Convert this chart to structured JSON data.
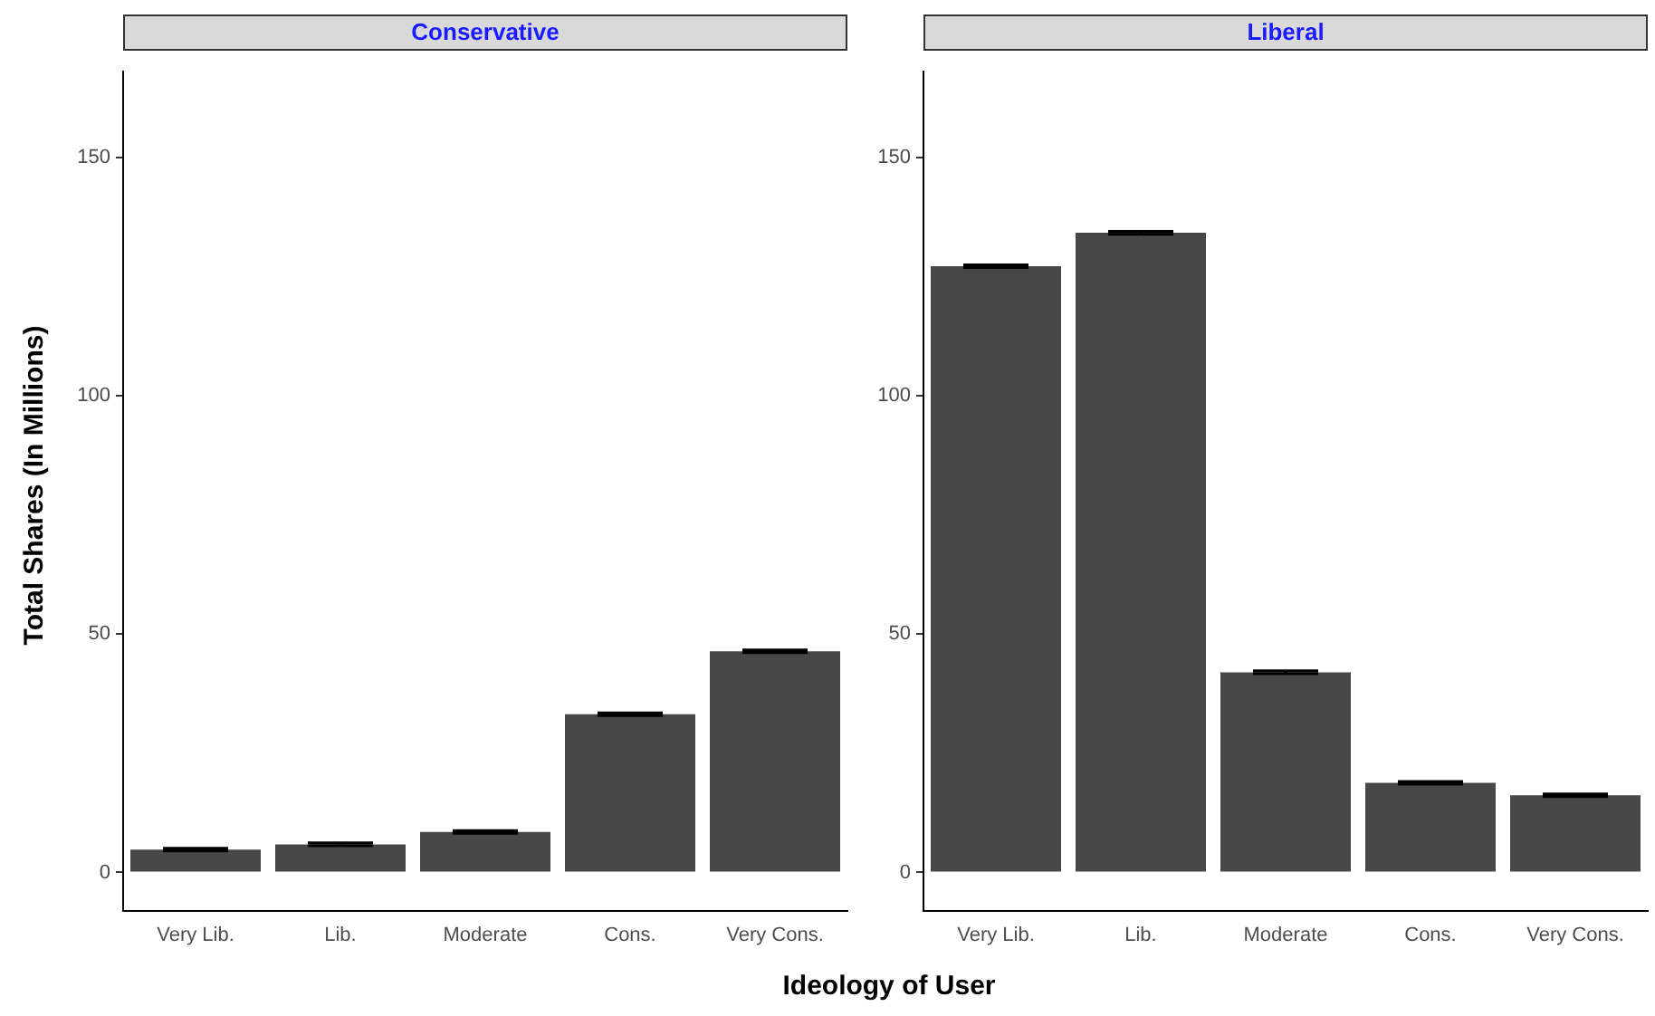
{
  "chart_data": [
    {
      "type": "bar",
      "title": "Conservative",
      "ylabel": "Total Shares (In Millions)",
      "xlabel": "Ideology of User",
      "categories": [
        "Very Lib.",
        "Lib.",
        "Moderate",
        "Cons.",
        "Very Cons."
      ],
      "values": [
        4.8,
        5.9,
        8.5,
        33.2,
        46.4
      ],
      "errors": [
        0.3,
        0.3,
        0.3,
        0.3,
        0.3
      ],
      "color": "#474747",
      "ylim": [
        -8,
        168
      ],
      "yticks": [
        0,
        50,
        100,
        150
      ],
      "grid": false,
      "legend": false
    },
    {
      "type": "bar",
      "title": "Liberal",
      "categories": [
        "Very Lib.",
        "Lib.",
        "Moderate",
        "Cons.",
        "Very Cons."
      ],
      "values": [
        127.2,
        134.2,
        42.0,
        18.8,
        16.2
      ],
      "errors": [
        0.3,
        0.3,
        0.3,
        0.3,
        0.3
      ],
      "color": "#474747",
      "ylim": [
        -8,
        168
      ],
      "yticks": [
        0,
        50,
        100,
        150
      ],
      "grid": false,
      "legend": false
    }
  ]
}
